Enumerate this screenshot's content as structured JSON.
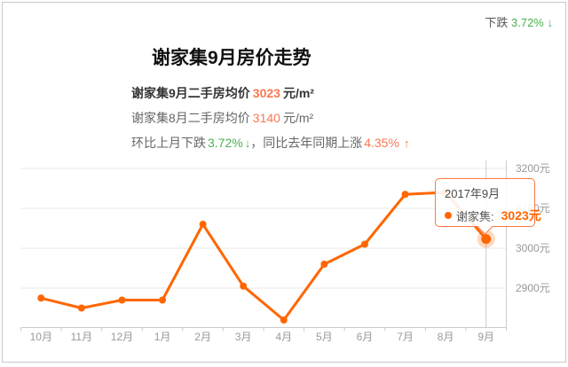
{
  "header": {
    "change_label": "下跌",
    "change_value": "3.72%",
    "down_arrow": "↓"
  },
  "title": "谢家集9月房价走势",
  "stats": {
    "line1": {
      "label": "谢家集9月二手房均价",
      "value": "3023",
      "unit": "元/m²"
    },
    "line2": {
      "label": "谢家集8月二手房均价",
      "value": "3140",
      "unit": "元/m²"
    },
    "line3": {
      "mom_label": "环比上月下跌",
      "mom_value": "3.72%",
      "mom_arrow": "↓",
      "separator": "，",
      "yoy_label": "同比去年同期上涨",
      "yoy_value": "4.35%",
      "yoy_arrow": "↑"
    }
  },
  "tooltip": {
    "date": "2017年9月",
    "series_label": "谢家集:",
    "value": "3023元"
  },
  "chart_data": {
    "type": "line",
    "title": "谢家集9月房价走势",
    "series": [
      {
        "name": "谢家集",
        "values": [
          2875,
          2850,
          2870,
          2870,
          3060,
          2905,
          2820,
          2960,
          3010,
          3135,
          3140,
          3023
        ]
      }
    ],
    "categories": [
      "10月",
      "11月",
      "12月",
      "1月",
      "2月",
      "3月",
      "4月",
      "5月",
      "6月",
      "7月",
      "8月",
      "9月"
    ],
    "y_ticks": [
      2900,
      3000,
      3100,
      3200
    ],
    "y_tick_labels": [
      "2900元",
      "3000元",
      "3100元",
      "3200元"
    ],
    "ylim": [
      2800,
      3240
    ],
    "grid": "horizontal",
    "legend": "none",
    "highlight_index": 11,
    "highlight_value": 3023,
    "line_color": "#ff6600",
    "point_color": "#ff6600",
    "halo_color": "rgba(255,102,0,0.25)",
    "grid_color": "#e8e8e8",
    "axis_color": "#cccccc",
    "axis_label_color": "#999999"
  },
  "colors": {
    "accent_orange": "#ff6600",
    "stat_number_orange": "#fa7850",
    "green": "#4cb050",
    "tooltip_border": "#ff7744",
    "card_border": "#c9c9c9"
  }
}
